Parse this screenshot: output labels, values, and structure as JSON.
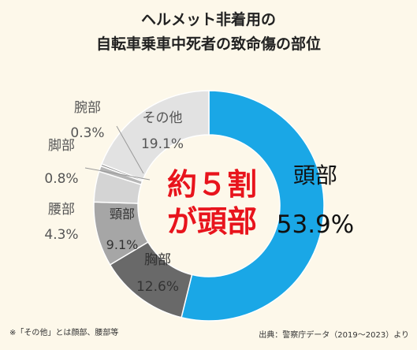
{
  "title_lines": [
    "ヘルメット非着用の",
    "自転車乗車中死者の致命傷の部位"
  ],
  "callout": {
    "line1": "約５割",
    "line2": "が頭部"
  },
  "footnote": "※「その他」とは顔部、腰部等",
  "source": "出典：警察庁データ（2019～2023）より",
  "chart_data": {
    "type": "pie",
    "title": "ヘルメット非着用の自転車乗車中死者の致命傷の部位",
    "slices": [
      {
        "label": "頭部",
        "value": 53.9,
        "display": "53.9%",
        "color": "#1aa7e6"
      },
      {
        "label": "胸部",
        "value": 12.6,
        "display": "12.6%",
        "color": "#696969"
      },
      {
        "label": "頸部",
        "value": 9.1,
        "display": "9.1%",
        "color": "#a6a6a6"
      },
      {
        "label": "腰部",
        "value": 4.3,
        "display": "4.3%",
        "color": "#d4d4d4"
      },
      {
        "label": "脚部",
        "value": 0.8,
        "display": "0.8%",
        "color": "#b5b5b5"
      },
      {
        "label": "腕部",
        "value": 0.3,
        "display": "0.3%",
        "color": "#8a8a8a"
      },
      {
        "label": "その他",
        "value": 19.1,
        "display": "19.1%",
        "color": "#e2e2e2"
      }
    ]
  }
}
